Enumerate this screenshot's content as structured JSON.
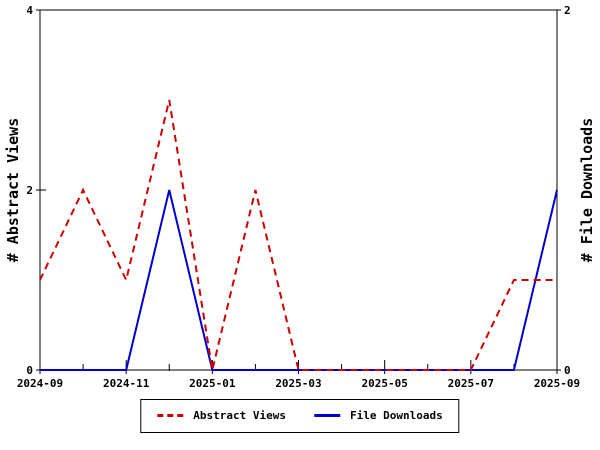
{
  "chart_data": {
    "type": "line",
    "x": [
      "2024-09",
      "2024-10",
      "2024-11",
      "2024-12",
      "2025-01",
      "2025-02",
      "2025-03",
      "2025-04",
      "2025-05",
      "2025-06",
      "2025-07",
      "2025-08",
      "2025-09"
    ],
    "x_tick_labels": [
      "2024-09",
      "2024-11",
      "2025-01",
      "2025-03",
      "2025-05",
      "2025-07",
      "2025-09"
    ],
    "x_label_every": 2,
    "series": [
      {
        "name": "Abstract Views",
        "axis": "left",
        "color": "#cc0000",
        "style": "dashed",
        "values": [
          1,
          2,
          1,
          3,
          0,
          2,
          0,
          0,
          0,
          0,
          0,
          1,
          1
        ]
      },
      {
        "name": "File Downloads",
        "axis": "right",
        "color": "#0000cc",
        "style": "solid",
        "values": [
          0,
          0,
          0,
          1,
          0,
          0,
          0,
          0,
          0,
          0,
          0,
          0,
          1
        ]
      }
    ],
    "left_axis": {
      "label": "# Abstract Views",
      "min": 0,
      "max": 4,
      "ticks": [
        0,
        2,
        4
      ]
    },
    "right_axis": {
      "label": "# File Downloads",
      "min": 0,
      "max": 2,
      "ticks": [
        0,
        2
      ]
    },
    "title": "",
    "grid": false,
    "legend_position": "bottom-center",
    "background": "#ffffff",
    "axis_color": "#000000"
  }
}
